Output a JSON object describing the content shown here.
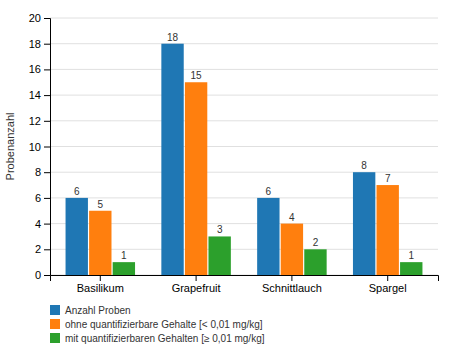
{
  "chart_data": {
    "type": "bar",
    "categories": [
      "Basilikum",
      "Grapefruit",
      "Schnittlauch",
      "Spargel"
    ],
    "series": [
      {
        "name": "Anzahl Proben",
        "values": [
          6,
          18,
          6,
          8
        ]
      },
      {
        "name": "ohne quantifizierbare Gehalte [< 0,01 mg/kg]",
        "values": [
          5,
          15,
          4,
          7
        ]
      },
      {
        "name": "mit quantifizierbaren Gehalten [≥ 0,01 mg/kg]",
        "values": [
          1,
          3,
          2,
          1
        ]
      }
    ],
    "y_label": "Probenanzahl",
    "ylim": [
      0,
      20
    ],
    "yticks": [
      0,
      2,
      4,
      6,
      8,
      10,
      12,
      14,
      16,
      18,
      20
    ],
    "grid": true,
    "data_labels": true,
    "legend": "bottom"
  }
}
